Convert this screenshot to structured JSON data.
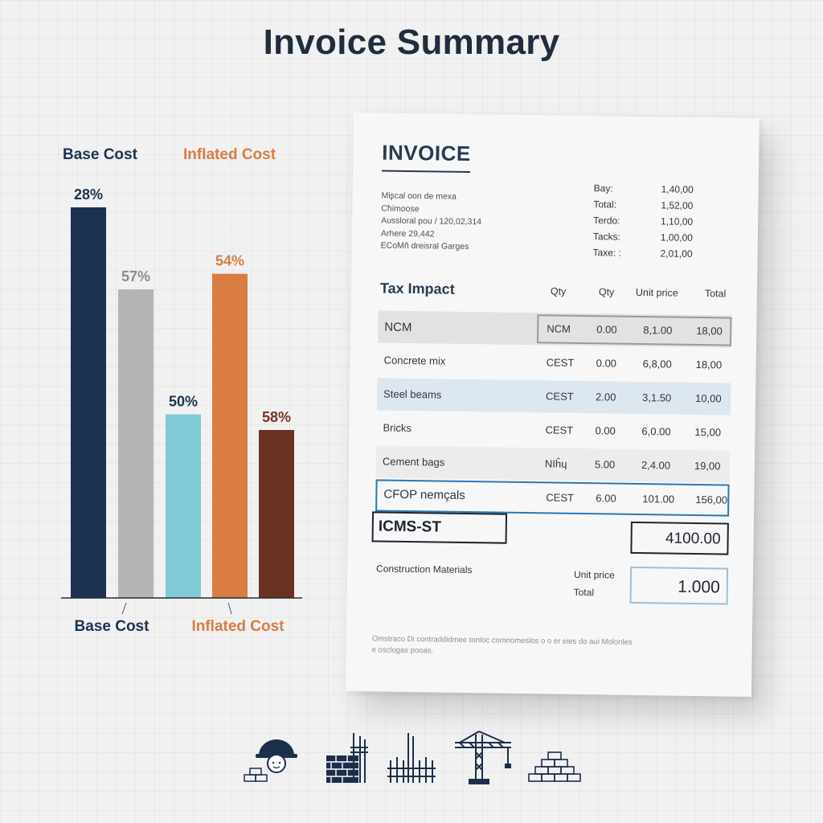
{
  "page_title": "Invoice Summary",
  "chart_data": {
    "type": "bar",
    "legend": [
      "Base Cost",
      "Inflated Cost"
    ],
    "x_group_labels": [
      "Base Cost",
      "Inflated Cost"
    ],
    "bars": [
      {
        "label": "28%",
        "value": 100,
        "color": "#1b3350"
      },
      {
        "label": "57%",
        "value": 79,
        "color": "#b4b4b6"
      },
      {
        "label": "50%",
        "value": 47,
        "color": "#7fcad4"
      },
      {
        "label": "54%",
        "value": 83,
        "color": "#d97d43"
      },
      {
        "label": "58%",
        "value": 43,
        "color": "#6a3223"
      }
    ],
    "colors": {
      "base": "#1b3350",
      "inflated": "#d97d43",
      "muted_label": "#8c8c8c"
    }
  },
  "invoice": {
    "title": "INVOICE",
    "address_lines": [
      "Miʂcal oon de mexa",
      "Cħimoose",
      "Aussloral pou / 120,02,314",
      "Arhere 29,442",
      "ECoMñ dreisral Garges"
    ],
    "totals": [
      {
        "label": "Bay:",
        "value": "1,40,00"
      },
      {
        "label": "Total:",
        "value": "1,52,00"
      },
      {
        "label": "Terdo:",
        "value": "1,10,00"
      },
      {
        "label": "Tacks:",
        "value": "1,00,00"
      },
      {
        "label": "Taxe: :",
        "value": "2,01,00"
      }
    ],
    "table": {
      "title": "Tax Impact",
      "headers": [
        "Qty",
        "Qty",
        "Unit price",
        "Total"
      ],
      "rows": [
        {
          "name": "NCM",
          "code": "NCM",
          "qty": "0.00",
          "unit": "8,1.00",
          "total": "18,00"
        },
        {
          "name": "Concrete mix",
          "code": "CEST",
          "qty": "0.00",
          "unit": "6,8,00",
          "total": "18,00"
        },
        {
          "name": "Steel beams",
          "code": "CEST",
          "qty": "2.00",
          "unit": "3,1.50",
          "total": "10,00"
        },
        {
          "name": "Bricks",
          "code": "CEST",
          "qty": "0.00",
          "unit": "6,0.00",
          "total": "15,00"
        },
        {
          "name": "Cement bags",
          "code": "NIĥɥ",
          "qty": "5.00",
          "unit": "2,4.00",
          "total": "19,00"
        },
        {
          "name": "CFOP nemçals",
          "code": "CEST",
          "qty": "6.00",
          "unit": "101.00",
          "total": "156,00"
        }
      ]
    },
    "icms_label": "ICMS-ST",
    "icms_total": "4100.00",
    "materials_label": "Construction Materials",
    "unit_price_label": "Unit price",
    "total_label": "Total",
    "amount": "1.000",
    "footnote": "Omstraco Di contraddidmee tonloc comnomeslos o o er eies do aui Molonles e osclogas pooas."
  },
  "icons": [
    "worker-helmet-icon",
    "brick-wall-icon",
    "rebar-icon",
    "tower-crane-icon",
    "brick-stack-icon"
  ]
}
